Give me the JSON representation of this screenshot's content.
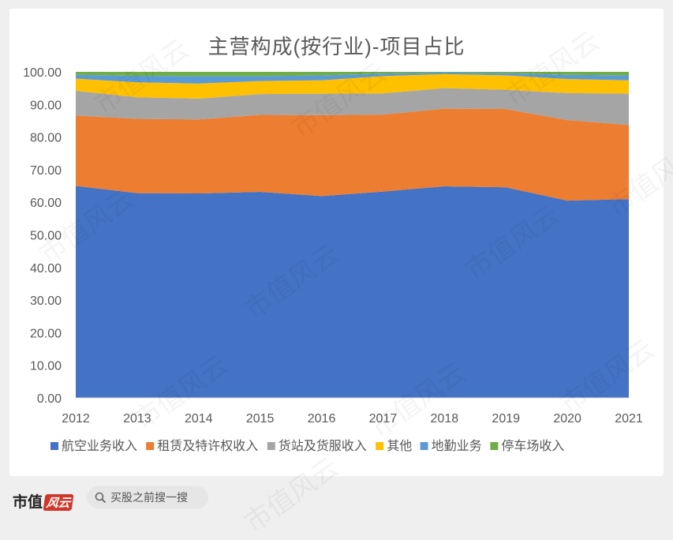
{
  "chart_data": {
    "type": "area",
    "stacked": true,
    "title": "主营构成(按行业)-项目占比",
    "x": [
      "2012",
      "2013",
      "2014",
      "2015",
      "2016",
      "2017",
      "2018",
      "2019",
      "2020",
      "2021"
    ],
    "ylim": [
      0,
      100
    ],
    "yticks": [
      "0.00",
      "10.00",
      "20.00",
      "30.00",
      "40.00",
      "50.00",
      "60.00",
      "70.00",
      "80.00",
      "90.00",
      "100.00"
    ],
    "legend_position": "bottom",
    "series": [
      {
        "name": "航空业务收入",
        "color": "#4472c4",
        "values": [
          65.0,
          62.8,
          62.7,
          63.2,
          61.9,
          63.3,
          64.9,
          64.6,
          60.5,
          61.0
        ]
      },
      {
        "name": "租赁及特许权收入",
        "color": "#ed7d31",
        "values": [
          21.6,
          22.8,
          22.7,
          23.6,
          24.8,
          23.6,
          23.8,
          24.0,
          24.7,
          22.7
        ]
      },
      {
        "name": "货站及货服收入",
        "color": "#a5a5a5",
        "values": [
          7.6,
          6.6,
          6.4,
          6.4,
          6.6,
          6.5,
          6.3,
          5.9,
          8.3,
          9.6
        ]
      },
      {
        "name": "其他",
        "color": "#ffc000",
        "values": [
          3.7,
          4.6,
          4.6,
          4.0,
          4.1,
          5.3,
          4.3,
          4.4,
          4.3,
          4.1
        ]
      },
      {
        "name": "地勤业务",
        "color": "#5b9bd5",
        "values": [
          1.2,
          2.0,
          2.3,
          1.5,
          1.5,
          0.8,
          0.5,
          0.7,
          1.3,
          1.5
        ]
      },
      {
        "name": "停车场收入",
        "color": "#70ad47",
        "values": [
          0.9,
          1.2,
          1.3,
          1.3,
          1.1,
          0.5,
          0.2,
          0.4,
          0.9,
          1.1
        ]
      }
    ]
  },
  "footer": {
    "brand": "市值",
    "brand_seal": "风云",
    "search_placeholder": "买股之前搜一搜"
  },
  "watermark_text": "市值风云"
}
